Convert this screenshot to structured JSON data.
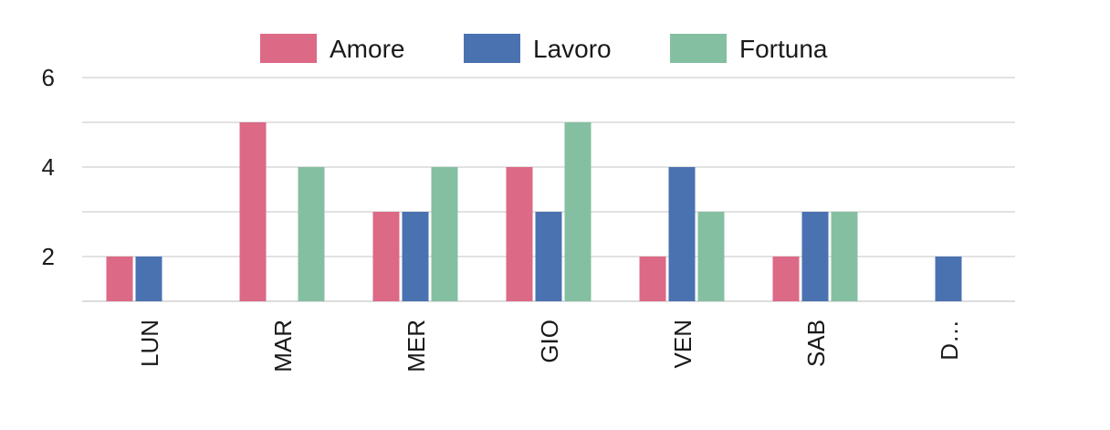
{
  "chart_data": {
    "type": "bar",
    "categories": [
      "LUN",
      "MAR",
      "MER",
      "GIO",
      "VEN",
      "SAB",
      "D…"
    ],
    "series": [
      {
        "name": "Amore",
        "color": "#dc6986",
        "values": [
          2,
          5,
          3,
          4,
          2,
          2,
          0
        ]
      },
      {
        "name": "Lavoro",
        "color": "#4a72b0",
        "values": [
          2,
          0,
          3,
          3,
          4,
          3,
          2
        ]
      },
      {
        "name": "Fortuna",
        "color": "#84bfa2",
        "values": [
          0,
          4,
          4,
          5,
          3,
          3,
          0
        ]
      }
    ],
    "yticks": [
      2,
      4,
      6
    ],
    "ylim": [
      1,
      6
    ],
    "grid": true,
    "legend": "top-center",
    "title": "",
    "xlabel": "",
    "ylabel": ""
  }
}
